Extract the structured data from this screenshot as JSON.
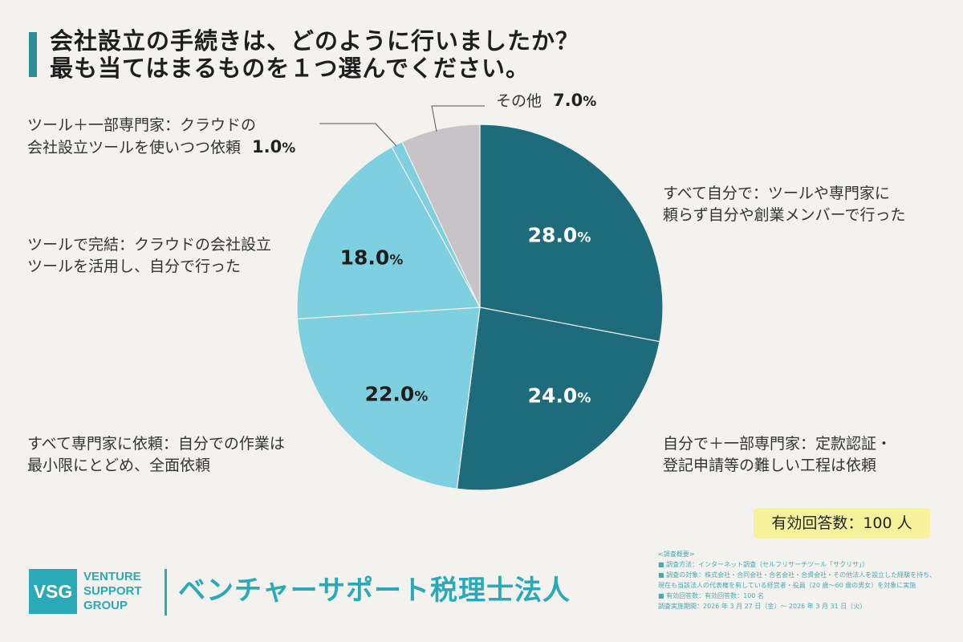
{
  "header": {
    "title_line1": "会社設立の手続きは、どのように行いましたか？",
    "title_line2": "最も当てはまるものを１つ選んでください。"
  },
  "chart_data": {
    "type": "pie",
    "title": "会社設立の手続きは、どのように行いましたか？最も当てはまるものを１つ選んでください。",
    "unit": "%",
    "slices": [
      {
        "label_lines": [
          "すべて自分で：ツールや専門家に",
          "頼らず自分や創業メンバーで行った"
        ],
        "value": 28.0,
        "display": "28.0",
        "color": "#1d6b7b"
      },
      {
        "label_lines": [
          "自分で＋一部専門家：定款認証・",
          "登記申請等の難しい工程は依頼"
        ],
        "value": 24.0,
        "display": "24.0",
        "color": "#1d6b7b"
      },
      {
        "label_lines": [
          "すべて専門家に依頼：自分での作業は",
          "最小限にとどめ、全面依頼"
        ],
        "value": 22.0,
        "display": "22.0",
        "color": "#7ecfdf"
      },
      {
        "label_lines": [
          "ツールで完結：クラウドの会社設立",
          "ツールを活用し、自分で行った"
        ],
        "value": 18.0,
        "display": "18.0",
        "color": "#7ecfdf"
      },
      {
        "label_lines": [
          "ツール＋一部専門家：クラウドの",
          "会社設立ツールを使いつつ依頼"
        ],
        "value": 1.0,
        "display": "1.0",
        "color": "#7ecfdf"
      },
      {
        "label_lines": [
          "その他"
        ],
        "value": 7.0,
        "display": "7.0",
        "color": "#c7c3c6"
      }
    ]
  },
  "response_count": "有効回答数：100 人",
  "survey_notes": [
    "<調査概要>",
    "■ 調査方法：インターネット調査（セルフリサーチツール「サクリサ」）",
    "■ 調査の対象：株式会社・合同会社・合名会社・合資会社・その他法人を設立した経験を持ち、",
    "現在も当該法人の代表権を有している経営者・役員（20 歳〜60 歳の男女）を対象に実施",
    "■ 有効回答数：有効回答数：100 名",
    "調査実施期間：2026 年 3 月 27 日（金）〜 2026 年 3 月 31 日（火）"
  ],
  "brand": {
    "logo_text": "VSG",
    "logo_words": [
      "VENTURE",
      "SUPPORT",
      "GROUP"
    ],
    "firm_name": "ベンチャーサポート税理士法人",
    "color": "#2aa9b8"
  }
}
